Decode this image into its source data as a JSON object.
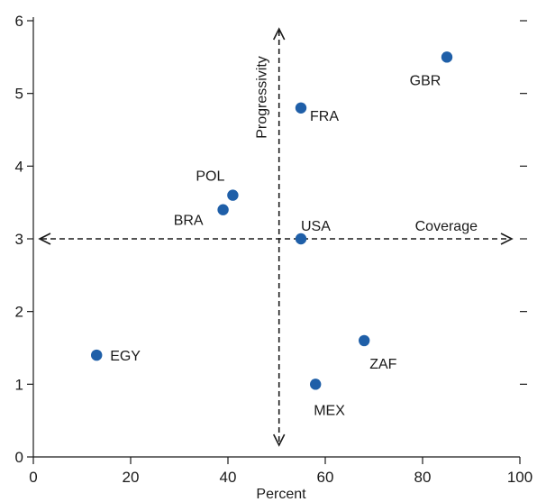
{
  "chart_data": {
    "type": "scatter",
    "title": "",
    "xlabel": "Percent",
    "ylabel": "",
    "xlim": [
      0,
      100
    ],
    "ylim": [
      0,
      6
    ],
    "x_ticks": [
      0,
      20,
      40,
      60,
      80,
      100
    ],
    "y_ticks": [
      0,
      1,
      2,
      3,
      4,
      5,
      6
    ],
    "grid": false,
    "legend": "none",
    "point_color": "#1f5fa8",
    "reference_lines": {
      "vertical_x": 50.5,
      "horizontal_y": 3,
      "vertical_label": "Progressivity",
      "horizontal_label": "Coverage"
    },
    "points": [
      {
        "label": "GBR",
        "x": 85,
        "y": 5.5
      },
      {
        "label": "FRA",
        "x": 55,
        "y": 4.8
      },
      {
        "label": "POL",
        "x": 41,
        "y": 3.6
      },
      {
        "label": "BRA",
        "x": 39,
        "y": 3.4
      },
      {
        "label": "USA",
        "x": 55,
        "y": 3.0
      },
      {
        "label": "ZAF",
        "x": 68,
        "y": 1.6
      },
      {
        "label": "EGY",
        "x": 13,
        "y": 1.4
      },
      {
        "label": "MEX",
        "x": 58,
        "y": 1.0
      }
    ]
  }
}
